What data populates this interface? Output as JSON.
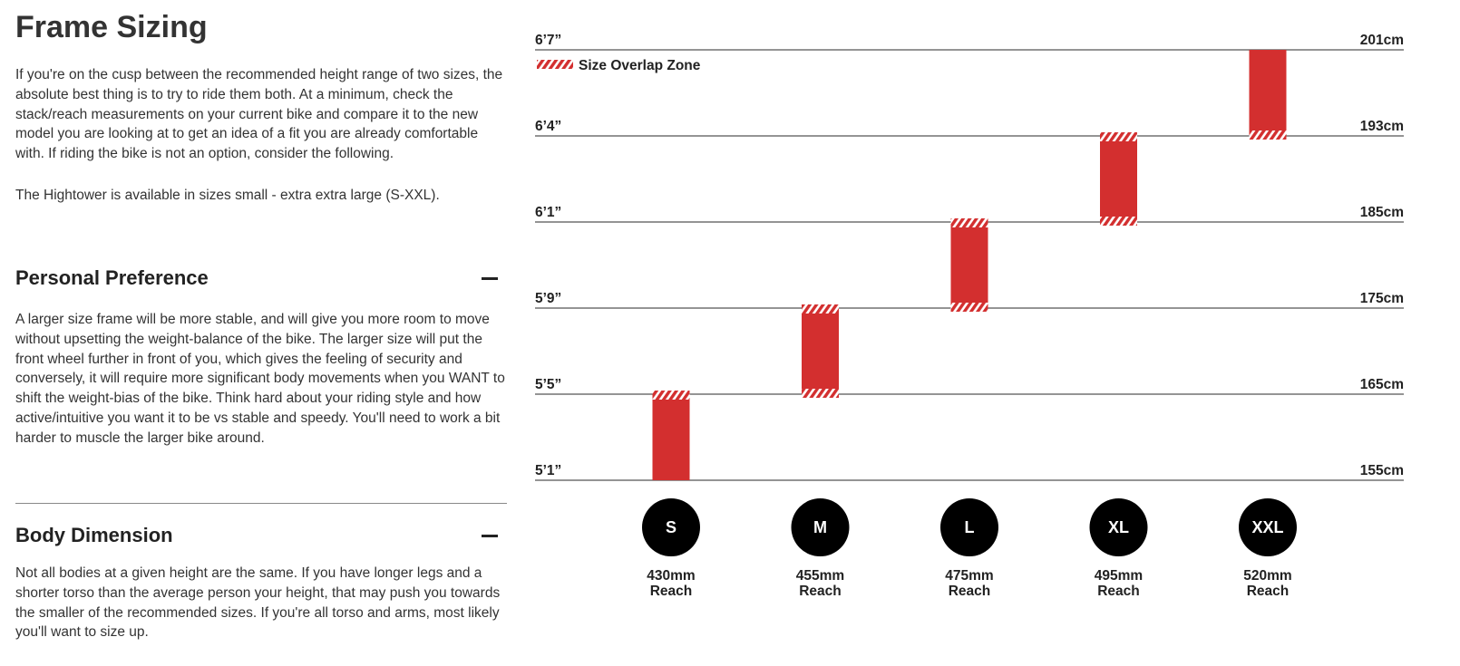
{
  "page": {
    "title": "Frame Sizing",
    "intro": "If you're on the cusp between the recommended height range of two sizes, the absolute best thing is to try to ride them both. At a minimum, check the stack/reach measurements on your current bike and compare it to the new model you are looking at to get an idea of a fit you are already comfortable with. If riding the bike is not an option, consider the following.",
    "availability": "The Hightower is available in sizes small - extra extra large (S-XXL)."
  },
  "sections": [
    {
      "title": "Personal Preference",
      "body": "A larger size frame will be more stable, and will give you more room to move without upsetting the weight-balance of the bike. The larger size will put the front wheel further in front of you, which gives the feeling of security and conversely, it will require more significant body movements when you WANT to shift the weight-bias of the bike. Think hard about your riding style and how active/intuitive you want it to be vs stable and speedy. You'll need to work a bit harder to muscle the larger bike around."
    },
    {
      "title": "Body Dimension",
      "body": "Not all bodies at a given height are the same. If you have longer legs and a shorter torso than the average person your height, that may push you towards the smaller of the recommended sizes. If you're all torso and arms, most likely you'll want to size up."
    }
  ],
  "chart_data": {
    "type": "bar",
    "legend": {
      "label": "Size Overlap Zone",
      "placement": "top-left"
    },
    "rows": [
      {
        "imperial": "6’7”",
        "metric": "201cm"
      },
      {
        "imperial": "6’4”",
        "metric": "193cm"
      },
      {
        "imperial": "6’1”",
        "metric": "185cm"
      },
      {
        "imperial": "5’9”",
        "metric": "175cm"
      },
      {
        "imperial": "5’5”",
        "metric": "165cm"
      },
      {
        "imperial": "5’1”",
        "metric": "155cm"
      }
    ],
    "sizes": [
      {
        "size": "S",
        "reach": "430mm",
        "reach_label": "Reach",
        "from_row": 4,
        "to_row": 5,
        "overlap_top": true,
        "overlap_bottom": false
      },
      {
        "size": "M",
        "reach": "455mm",
        "reach_label": "Reach",
        "from_row": 3,
        "to_row": 4,
        "overlap_top": true,
        "overlap_bottom": true
      },
      {
        "size": "L",
        "reach": "475mm",
        "reach_label": "Reach",
        "from_row": 2,
        "to_row": 3,
        "overlap_top": true,
        "overlap_bottom": true
      },
      {
        "size": "XL",
        "reach": "495mm",
        "reach_label": "Reach",
        "from_row": 1,
        "to_row": 2,
        "overlap_top": true,
        "overlap_bottom": true
      },
      {
        "size": "XXL",
        "reach": "520mm",
        "reach_label": "Reach",
        "from_row": 0,
        "to_row": 1,
        "overlap_top": false,
        "overlap_bottom": true
      }
    ],
    "colors": {
      "bar": "#d32f2f",
      "line": "#555555",
      "badge": "#000000",
      "text": "#222222"
    }
  }
}
